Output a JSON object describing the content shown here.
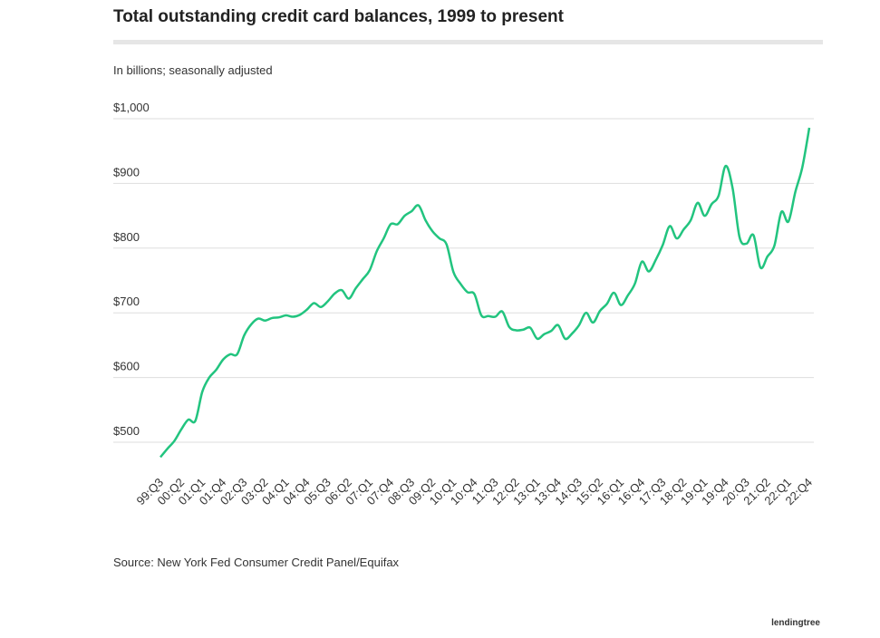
{
  "chart_data": {
    "type": "line",
    "title": "Total outstanding credit card balances, 1999 to present",
    "subtitle": "In billions; seasonally adjusted",
    "source": "Source: New York Fed Consumer Credit Panel/Equifax",
    "logo": "lendingtree",
    "categories": [
      "99:Q3",
      null,
      null,
      "00:Q2",
      null,
      null,
      "01:Q1",
      null,
      null,
      "01:Q4",
      null,
      null,
      "02:Q3",
      null,
      null,
      "03:Q2",
      null,
      null,
      "04:Q1",
      null,
      null,
      "04:Q4",
      null,
      null,
      "05:Q3",
      null,
      null,
      "06:Q2",
      null,
      null,
      "07:Q1",
      null,
      null,
      "07:Q4",
      null,
      null,
      "08:Q3",
      null,
      null,
      "09:Q2",
      null,
      null,
      "10:Q1",
      null,
      null,
      "10:Q4",
      null,
      null,
      "11:Q3",
      null,
      null,
      "12:Q2",
      null,
      null,
      "13:Q1",
      null,
      null,
      "13:Q4",
      null,
      null,
      "14:Q3",
      null,
      null,
      "15:Q2",
      null,
      null,
      "16:Q1",
      null,
      null,
      "16:Q4",
      null,
      null,
      "17:Q3",
      null,
      null,
      "18:Q2",
      null,
      null,
      "19:Q1",
      null,
      null,
      "19:Q4",
      null,
      null,
      "20:Q3",
      null,
      null,
      "21:Q2",
      null,
      null,
      "22:Q1",
      null,
      null,
      "22:Q4"
    ],
    "values": [
      477,
      490,
      502,
      520,
      535,
      533,
      578,
      600,
      612,
      628,
      636,
      636,
      665,
      682,
      691,
      688,
      692,
      693,
      696,
      694,
      697,
      705,
      715,
      709,
      718,
      730,
      735,
      722,
      738,
      752,
      766,
      795,
      815,
      837,
      837,
      850,
      857,
      866,
      843,
      826,
      815,
      806,
      763,
      745,
      732,
      729,
      696,
      695,
      694,
      702,
      678,
      673,
      674,
      677,
      660,
      667,
      672,
      681,
      660,
      668,
      681,
      700,
      685,
      703,
      714,
      731,
      712,
      727,
      745,
      779,
      764,
      782,
      805,
      834,
      815,
      829,
      843,
      870,
      850,
      868,
      881,
      927,
      893,
      817,
      807,
      820,
      770,
      787,
      804,
      856,
      841,
      887,
      925,
      986
    ],
    "color": "#22c47f",
    "ylim": [
      460,
      1000
    ],
    "yticks": [
      {
        "value": 500,
        "label": "$500"
      },
      {
        "value": 600,
        "label": "$600"
      },
      {
        "value": 700,
        "label": "$700"
      },
      {
        "value": 800,
        "label": "$800"
      },
      {
        "value": 900,
        "label": "$900"
      },
      {
        "value": 1000,
        "label": "$1,000"
      }
    ],
    "grid": true
  }
}
